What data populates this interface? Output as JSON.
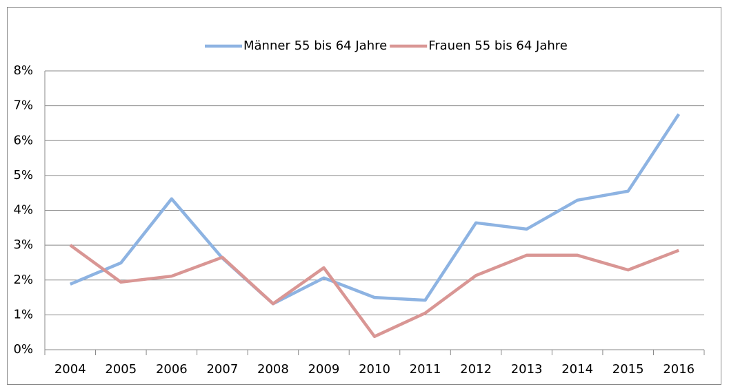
{
  "chart_data": {
    "type": "line",
    "categories": [
      "2004",
      "2005",
      "2006",
      "2007",
      "2008",
      "2009",
      "2010",
      "2011",
      "2012",
      "2013",
      "2014",
      "2015",
      "2016"
    ],
    "series": [
      {
        "name": "Männer 55 bis 64 Jahre",
        "color": "#8db3e2",
        "values": [
          1.88,
          2.49,
          4.33,
          2.63,
          1.32,
          2.06,
          1.5,
          1.42,
          3.64,
          3.46,
          4.29,
          4.55,
          6.76
        ]
      },
      {
        "name": "Frauen 55 bis 64 Jahre",
        "color": "#d99694",
        "values": [
          3.0,
          1.94,
          2.11,
          2.65,
          1.32,
          2.35,
          0.38,
          1.05,
          2.13,
          2.71,
          2.71,
          2.29,
          2.85
        ]
      }
    ],
    "ylim": [
      0,
      8
    ],
    "yticks": [
      {
        "value": 0,
        "label": "0%"
      },
      {
        "value": 1,
        "label": "1%"
      },
      {
        "value": 2,
        "label": "2%"
      },
      {
        "value": 3,
        "label": "3%"
      },
      {
        "value": 4,
        "label": "4%"
      },
      {
        "value": 5,
        "label": "5%"
      },
      {
        "value": 6,
        "label": "6%"
      },
      {
        "value": 7,
        "label": "7%"
      },
      {
        "value": 8,
        "label": "8%"
      }
    ],
    "grid": true,
    "legend": "top"
  }
}
